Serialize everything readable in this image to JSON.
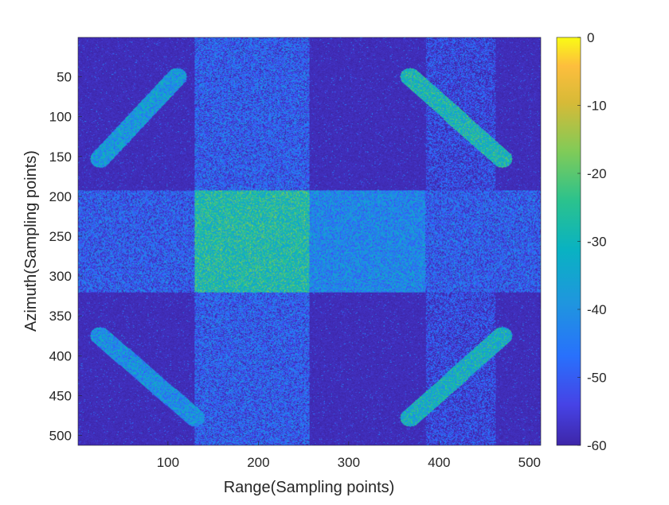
{
  "chart_data": {
    "type": "heatmap",
    "xlabel": "Range(Sampling points)",
    "ylabel": "Azimuth(Sampling points)",
    "xlim": [
      1,
      512
    ],
    "ylim": [
      1,
      512
    ],
    "y_reversed": true,
    "x_ticks": [
      100,
      200,
      300,
      400,
      500
    ],
    "y_ticks": [
      50,
      100,
      150,
      200,
      250,
      300,
      350,
      400,
      450,
      500
    ],
    "colorbar": {
      "colormap": "parula",
      "clim": [
        -60,
        0
      ],
      "ticks": [
        0,
        -10,
        -20,
        -30,
        -40,
        -50,
        -60
      ]
    },
    "regions": [
      {
        "name": "background",
        "x": [
          1,
          512
        ],
        "y": [
          1,
          512
        ],
        "level_db": -57
      },
      {
        "name": "range-strip-left",
        "x": [
          130,
          256
        ],
        "y": [
          1,
          512
        ],
        "level_db": -50
      },
      {
        "name": "range-strip-right",
        "x": [
          386,
          462
        ],
        "y": [
          1,
          512
        ],
        "level_db": -54
      },
      {
        "name": "azimuth-band",
        "x": [
          1,
          512
        ],
        "y": [
          193,
          320
        ],
        "level_db": -50
      },
      {
        "name": "center-block-bright",
        "x": [
          130,
          256
        ],
        "y": [
          193,
          320
        ],
        "level_db": -28
      },
      {
        "name": "center-block-mid",
        "x": [
          256,
          384
        ],
        "y": [
          193,
          320
        ],
        "level_db": -42
      }
    ],
    "targets": [
      {
        "name": "top-left",
        "from": [
          110,
          50
        ],
        "to": [
          25,
          153
        ],
        "width": 22,
        "level_db": -38
      },
      {
        "name": "top-right",
        "from": [
          368,
          50
        ],
        "to": [
          470,
          153
        ],
        "width": 22,
        "level_db": -30
      },
      {
        "name": "bottom-left",
        "from": [
          25,
          375
        ],
        "to": [
          130,
          478
        ],
        "width": 22,
        "level_db": -40
      },
      {
        "name": "bottom-right",
        "from": [
          470,
          375
        ],
        "to": [
          368,
          478
        ],
        "width": 22,
        "level_db": -32
      }
    ]
  }
}
